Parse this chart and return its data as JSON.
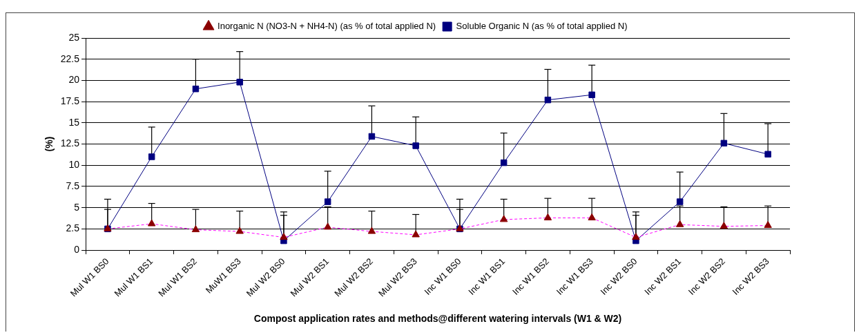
{
  "chart_data": {
    "type": "line",
    "xlabel": "Compost application rates and methods@different watering intervals (W1 & W2)",
    "ylabel": "(%)",
    "categories": [
      "Mul W1 BS0",
      "Mul W1 BS1",
      "Mul W1 BS2",
      "MuW1 BS3",
      "Mul W2 BS0",
      "Mul W2 BS1",
      "Mul W2 BS2",
      "Mul W2 BS3",
      "Inc W1 BS0",
      "Inc W1 BS1",
      "Inc W1 BS2",
      "Inc W1 BS3",
      "Inc W2 BS0",
      "Inc W2 BS1",
      "Inc W2 BS2",
      "Inc W2 BS3"
    ],
    "series": [
      {
        "name": "Soluble Organic N (as % of total applied N)",
        "color": "#000080",
        "marker": "square",
        "line_style": "solid",
        "values": [
          2.5,
          11,
          19,
          19.8,
          1.1,
          5.7,
          13.4,
          12.3,
          2.5,
          10.3,
          17.7,
          18.3,
          1.1,
          5.7,
          12.6,
          11.3
        ],
        "errors": [
          [
            2.5,
            6.0
          ],
          [
            11,
            14.5
          ],
          [
            19,
            22.5
          ],
          [
            19.8,
            23.4
          ],
          [
            1.1,
            4.5
          ],
          [
            5.7,
            9.3
          ],
          [
            13.4,
            17.0
          ],
          [
            12.3,
            15.7
          ],
          [
            2.5,
            6.0
          ],
          [
            10.3,
            13.8
          ],
          [
            17.7,
            21.3
          ],
          [
            18.3,
            21.8
          ],
          [
            1.1,
            4.5
          ],
          [
            5.7,
            9.2
          ],
          [
            12.6,
            16.1
          ],
          [
            11.3,
            14.9
          ]
        ]
      },
      {
        "name": "Inorganic N (NO3-N + NH4-N) (as % of total applied N)",
        "color": "#ff00ff",
        "marker": "triangle",
        "line_style": "dashed",
        "values": [
          2.5,
          3.1,
          2.4,
          2.2,
          1.5,
          2.7,
          2.2,
          1.8,
          2.5,
          3.6,
          3.8,
          3.8,
          1.5,
          3.0,
          2.8,
          2.9
        ],
        "errors": [
          [
            2.5,
            4.8
          ],
          [
            3.1,
            5.5
          ],
          [
            2.4,
            4.8
          ],
          [
            2.2,
            4.6
          ],
          [
            1.5,
            4.1
          ],
          [
            2.7,
            5.1
          ],
          [
            2.2,
            4.6
          ],
          [
            1.8,
            4.2
          ],
          [
            2.5,
            4.8
          ],
          [
            3.6,
            6.0
          ],
          [
            3.8,
            6.1
          ],
          [
            3.8,
            6.1
          ],
          [
            1.5,
            4.1
          ],
          [
            3.0,
            5.2
          ],
          [
            2.8,
            5.1
          ],
          [
            2.9,
            5.2
          ]
        ]
      }
    ],
    "ylim": [
      0,
      25
    ],
    "yticks": [
      0,
      2.5,
      5,
      7.5,
      10,
      12.5,
      15,
      17.5,
      20,
      22.5,
      25
    ],
    "grid": "y",
    "legend": "top"
  }
}
